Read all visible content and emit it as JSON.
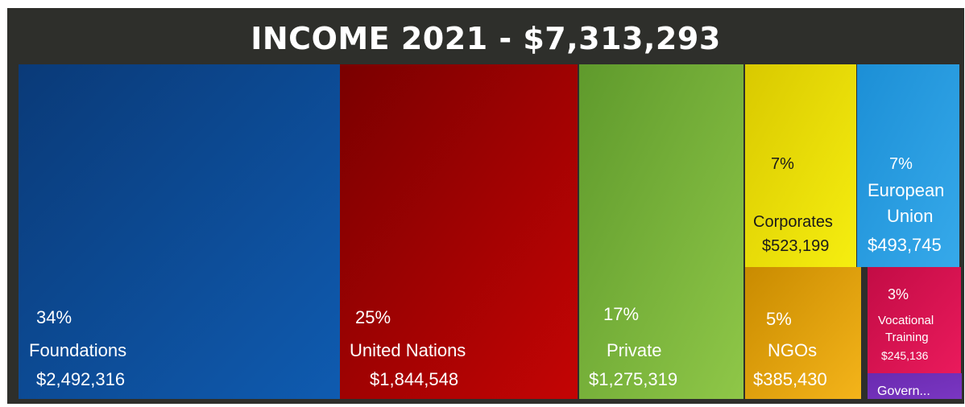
{
  "chart_data": {
    "type": "treemap",
    "title": "INCOME 2021 - $7,313,293",
    "segments": [
      {
        "pct": "34%",
        "name": "Foundations",
        "amount": "$2,492,316",
        "value": 2492316,
        "color_from": "#0a3a78",
        "color_to": "#0f5bb0",
        "text_color": "#ffffff"
      },
      {
        "pct": "25%",
        "name": "United Nations",
        "amount": "$1,844,548",
        "value": 1844548,
        "color_from": "#7a0000",
        "color_to": "#c40404",
        "text_color": "#ffffff"
      },
      {
        "pct": "17%",
        "name": "Private",
        "amount": "$1,275,319",
        "value": 1275319,
        "color_from": "#5f9a2c",
        "color_to": "#8fc748",
        "text_color": "#ffffff"
      },
      {
        "pct": "7%",
        "name": "Corporates",
        "amount": "$523,199",
        "value": 523199,
        "color_from": "#d9c900",
        "color_to": "#f6ee10",
        "text_color": "#1a1a1a"
      },
      {
        "pct": "7%",
        "name": "European Union",
        "name_lines": [
          "European",
          "Union"
        ],
        "amount": "$493,745",
        "value": 493745,
        "color_from": "#1c8fd6",
        "color_to": "#36a9ea",
        "text_color": "#ffffff"
      },
      {
        "pct": "5%",
        "name": "NGOs",
        "amount": "$385,430",
        "value": 385430,
        "color_from": "#c98b00",
        "color_to": "#f4b41a",
        "text_color": "#ffffff"
      },
      {
        "pct": "3%",
        "name": "Vocational Training",
        "name_lines": [
          "Vocational",
          "Training"
        ],
        "amount": "$245,136",
        "value": 245136,
        "color_from": "#c20c45",
        "color_to": "#ea1a5c",
        "text_color": "#ffffff"
      },
      {
        "pct": "",
        "name": "Govern...",
        "amount": "",
        "value": 53600,
        "color_from": "#6a2bb0",
        "color_to": "#7a36c2",
        "text_color": "#ffffff"
      }
    ]
  }
}
